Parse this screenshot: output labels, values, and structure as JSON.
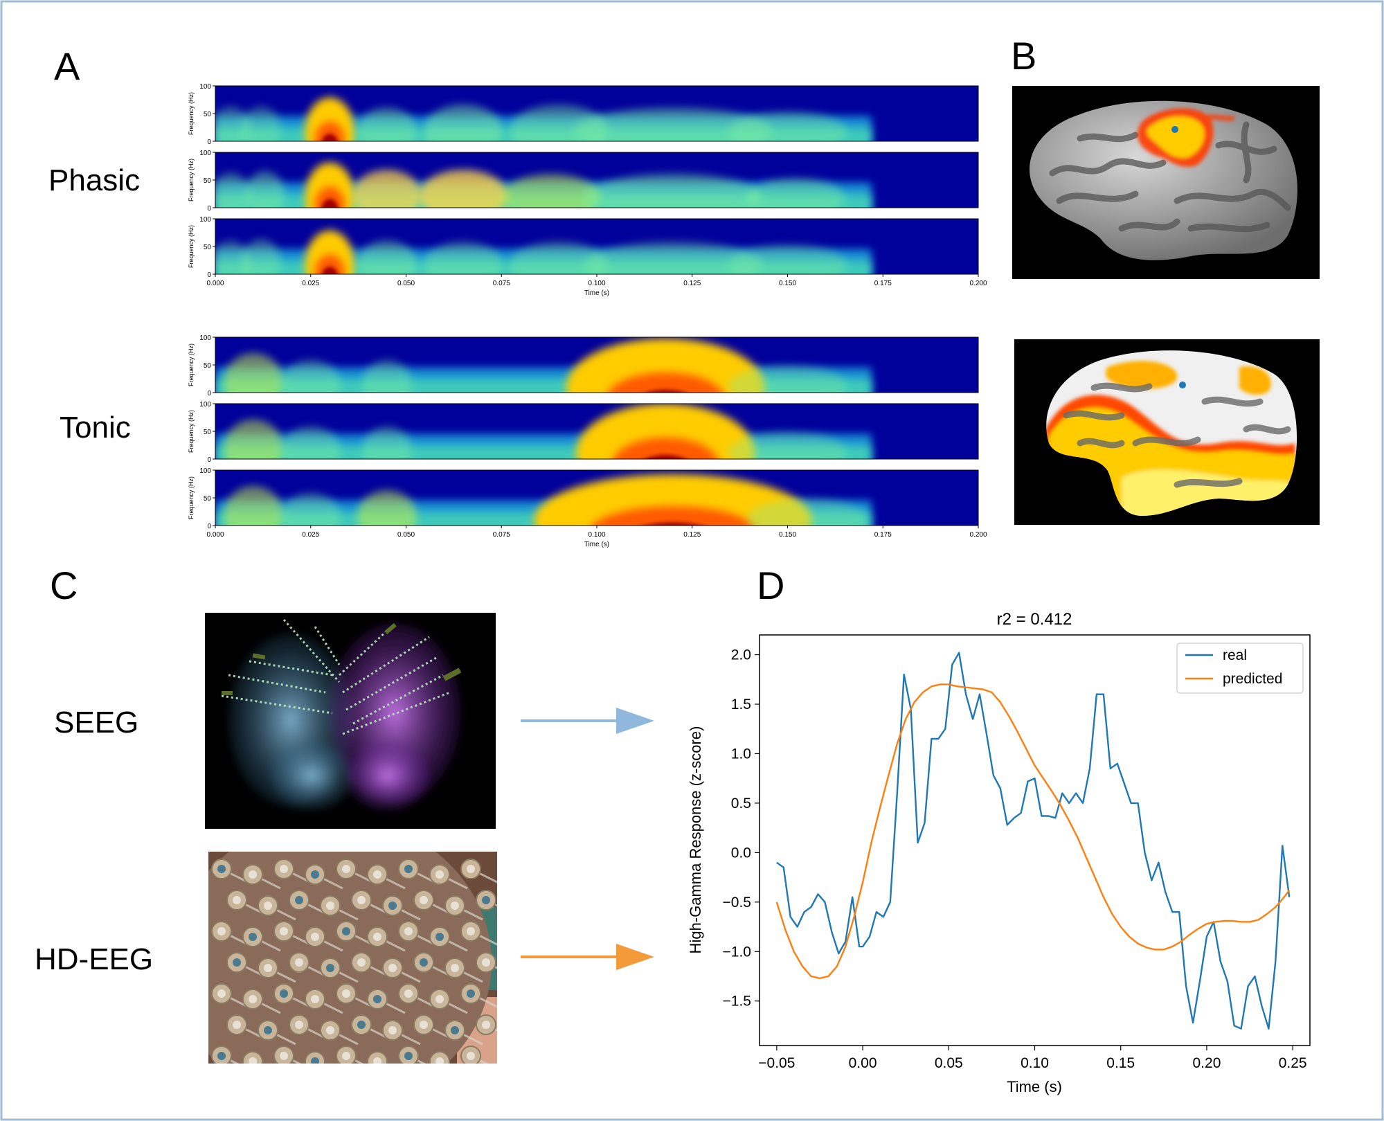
{
  "panels": {
    "a": "A",
    "b": "B",
    "c": "C",
    "d": "D"
  },
  "spectrogram": {
    "phasic_label": "Phasic",
    "tonic_label": "Tonic",
    "ylabel": "Frequency (Hz)",
    "xlabel": "Time (s)",
    "yticks": [
      "0",
      "50",
      "100"
    ],
    "xticks": [
      "0.000",
      "0.025",
      "0.050",
      "0.075",
      "0.100",
      "0.125",
      "0.150",
      "0.175",
      "0.200"
    ],
    "xlim": [
      0,
      0.2
    ],
    "ylim": [
      0,
      100
    ],
    "phasic_rows": [
      {
        "blobs": [
          [
            0.004,
            18,
            0.004,
            16,
            0.35
          ],
          [
            0.012,
            18,
            0.004,
            16,
            0.35
          ],
          [
            0.03,
            14,
            0.005,
            24,
            1.0
          ],
          [
            0.045,
            16,
            0.006,
            16,
            0.45
          ],
          [
            0.065,
            16,
            0.008,
            18,
            0.5
          ],
          [
            0.09,
            16,
            0.01,
            18,
            0.45
          ],
          [
            0.12,
            16,
            0.02,
            16,
            0.45
          ],
          [
            0.15,
            14,
            0.012,
            14,
            0.4
          ]
        ]
      },
      {
        "blobs": [
          [
            0.004,
            18,
            0.004,
            16,
            0.4
          ],
          [
            0.013,
            20,
            0.004,
            16,
            0.45
          ],
          [
            0.03,
            16,
            0.005,
            24,
            1.0
          ],
          [
            0.045,
            18,
            0.007,
            18,
            0.75
          ],
          [
            0.065,
            18,
            0.009,
            18,
            0.8
          ],
          [
            0.088,
            16,
            0.01,
            16,
            0.55
          ],
          [
            0.12,
            16,
            0.018,
            16,
            0.5
          ],
          [
            0.152,
            14,
            0.01,
            14,
            0.45
          ]
        ]
      },
      {
        "blobs": [
          [
            0.004,
            16,
            0.004,
            16,
            0.35
          ],
          [
            0.012,
            18,
            0.004,
            16,
            0.4
          ],
          [
            0.03,
            14,
            0.005,
            24,
            1.0
          ],
          [
            0.045,
            16,
            0.006,
            16,
            0.45
          ],
          [
            0.065,
            14,
            0.008,
            16,
            0.4
          ],
          [
            0.09,
            14,
            0.01,
            16,
            0.4
          ],
          [
            0.12,
            14,
            0.018,
            16,
            0.4
          ],
          [
            0.15,
            14,
            0.012,
            14,
            0.35
          ]
        ]
      }
    ],
    "tonic_rows": [
      {
        "blobs": [
          [
            0.01,
            16,
            0.006,
            20,
            0.55
          ],
          [
            0.025,
            14,
            0.006,
            16,
            0.4
          ],
          [
            0.045,
            14,
            0.005,
            16,
            0.4
          ],
          [
            0.118,
            8,
            0.02,
            34,
            1.05
          ],
          [
            0.15,
            10,
            0.012,
            14,
            0.35
          ]
        ]
      },
      {
        "blobs": [
          [
            0.01,
            16,
            0.006,
            20,
            0.55
          ],
          [
            0.025,
            14,
            0.006,
            16,
            0.4
          ],
          [
            0.045,
            14,
            0.005,
            16,
            0.4
          ],
          [
            0.118,
            10,
            0.018,
            34,
            1.05
          ],
          [
            0.15,
            10,
            0.012,
            14,
            0.35
          ]
        ]
      },
      {
        "blobs": [
          [
            0.01,
            16,
            0.006,
            20,
            0.55
          ],
          [
            0.025,
            14,
            0.006,
            16,
            0.4
          ],
          [
            0.045,
            14,
            0.006,
            18,
            0.55
          ],
          [
            0.12,
            8,
            0.028,
            32,
            1.05
          ],
          [
            0.155,
            10,
            0.012,
            14,
            0.35
          ]
        ]
      }
    ]
  },
  "brain_maps": {
    "top": "phasic",
    "bottom": "tonic"
  },
  "recording": {
    "seeg_label": "SEEG",
    "hdeeg_label": "HD-EEG",
    "seeg_arrow_color": "#8fb8dc",
    "hdeeg_arrow_color": "#f39b3a"
  },
  "chart_data": {
    "type": "line",
    "title": "r2 = 0.412",
    "xlabel": "Time (s)",
    "ylabel": "High-Gamma Response (z-score)",
    "xlim": [
      -0.06,
      0.26
    ],
    "ylim": [
      -1.95,
      2.2
    ],
    "xticks": [
      -0.05,
      0.0,
      0.05,
      0.1,
      0.15,
      0.2,
      0.25
    ],
    "xtick_labels": [
      "−0.05",
      "0.00",
      "0.05",
      "0.10",
      "0.15",
      "0.20",
      "0.25"
    ],
    "yticks": [
      -1.5,
      -1.0,
      -0.5,
      0.0,
      0.5,
      1.0,
      1.5,
      2.0
    ],
    "ytick_labels": [
      "−1.5",
      "−1.0",
      "−0.5",
      "0.0",
      "0.5",
      "1.0",
      "1.5",
      "2.0"
    ],
    "legend": "top-right",
    "grid": false,
    "series": [
      {
        "name": "real",
        "color": "#1f77b4",
        "x": [
          -0.05,
          -0.046,
          -0.042,
          -0.038,
          -0.034,
          -0.03,
          -0.026,
          -0.022,
          -0.018,
          -0.014,
          -0.01,
          -0.006,
          -0.002,
          0.0,
          0.004,
          0.008,
          0.012,
          0.016,
          0.02,
          0.024,
          0.028,
          0.032,
          0.036,
          0.04,
          0.044,
          0.048,
          0.052,
          0.056,
          0.06,
          0.064,
          0.068,
          0.072,
          0.076,
          0.08,
          0.084,
          0.088,
          0.092,
          0.096,
          0.1,
          0.104,
          0.108,
          0.112,
          0.116,
          0.12,
          0.124,
          0.128,
          0.132,
          0.136,
          0.14,
          0.144,
          0.148,
          0.152,
          0.156,
          0.16,
          0.164,
          0.168,
          0.172,
          0.176,
          0.18,
          0.184,
          0.188,
          0.192,
          0.196,
          0.2,
          0.204,
          0.208,
          0.212,
          0.216,
          0.22,
          0.224,
          0.228,
          0.232,
          0.236,
          0.24,
          0.244,
          0.248
        ],
        "y": [
          -0.1,
          -0.15,
          -0.65,
          -0.75,
          -0.6,
          -0.55,
          -0.42,
          -0.5,
          -0.8,
          -1.02,
          -0.9,
          -0.45,
          -0.95,
          -0.95,
          -0.85,
          -0.6,
          -0.65,
          -0.5,
          0.6,
          1.8,
          1.45,
          0.1,
          0.3,
          1.15,
          1.15,
          1.25,
          1.9,
          2.02,
          1.6,
          1.35,
          1.6,
          1.2,
          0.78,
          0.65,
          0.28,
          0.35,
          0.4,
          0.72,
          0.75,
          0.37,
          0.37,
          0.35,
          0.6,
          0.5,
          0.6,
          0.5,
          0.85,
          1.6,
          1.6,
          0.85,
          0.9,
          0.7,
          0.5,
          0.5,
          0.0,
          -0.28,
          -0.1,
          -0.4,
          -0.6,
          -0.6,
          -1.35,
          -1.72,
          -1.3,
          -0.85,
          -0.7,
          -1.1,
          -1.3,
          -1.75,
          -1.78,
          -1.35,
          -1.25,
          -1.55,
          -1.78,
          -1.1,
          0.07,
          -0.45
        ]
      },
      {
        "name": "predicted",
        "color": "#ff7f0e",
        "x": [
          -0.05,
          -0.045,
          -0.04,
          -0.035,
          -0.03,
          -0.025,
          -0.02,
          -0.015,
          -0.01,
          -0.005,
          0.0,
          0.005,
          0.01,
          0.015,
          0.02,
          0.025,
          0.03,
          0.035,
          0.04,
          0.045,
          0.05,
          0.055,
          0.06,
          0.065,
          0.07,
          0.075,
          0.08,
          0.085,
          0.09,
          0.095,
          0.1,
          0.105,
          0.11,
          0.115,
          0.12,
          0.125,
          0.13,
          0.135,
          0.14,
          0.145,
          0.15,
          0.155,
          0.16,
          0.165,
          0.17,
          0.175,
          0.18,
          0.185,
          0.19,
          0.195,
          0.2,
          0.205,
          0.21,
          0.215,
          0.22,
          0.225,
          0.23,
          0.235,
          0.24,
          0.245,
          0.248
        ],
        "y": [
          -0.5,
          -0.78,
          -1.0,
          -1.15,
          -1.25,
          -1.27,
          -1.25,
          -1.15,
          -0.95,
          -0.65,
          -0.3,
          0.1,
          0.45,
          0.78,
          1.1,
          1.35,
          1.52,
          1.62,
          1.68,
          1.7,
          1.7,
          1.68,
          1.67,
          1.66,
          1.65,
          1.62,
          1.52,
          1.38,
          1.22,
          1.05,
          0.88,
          0.75,
          0.62,
          0.48,
          0.32,
          0.15,
          -0.05,
          -0.25,
          -0.45,
          -0.62,
          -0.75,
          -0.85,
          -0.92,
          -0.96,
          -0.98,
          -0.98,
          -0.95,
          -0.9,
          -0.83,
          -0.77,
          -0.72,
          -0.7,
          -0.69,
          -0.69,
          -0.7,
          -0.7,
          -0.68,
          -0.62,
          -0.55,
          -0.45,
          -0.38
        ]
      }
    ]
  }
}
